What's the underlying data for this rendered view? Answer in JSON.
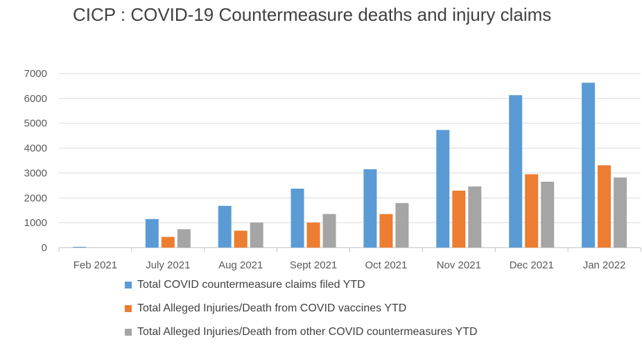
{
  "chart_data": {
    "type": "bar",
    "title": "CICP : COVID-19 Countermeasure deaths and injury claims",
    "categories": [
      "Feb 2021",
      "July 2021",
      "Aug 2021",
      "Sept 2021",
      "Oct 2021",
      "Nov 2021",
      "Dec 2021",
      "Jan 2022"
    ],
    "ylim": [
      0,
      7000
    ],
    "yticks": [
      "0",
      "1000",
      "2000",
      "3000",
      "4000",
      "5000",
      "6000",
      "7000"
    ],
    "grid": true,
    "legend_position": "bottom",
    "series": [
      {
        "name": "Total COVID countermeasure claims filed YTD",
        "color": "#5b9bd5",
        "values": [
          30,
          1150,
          1680,
          2370,
          3150,
          4730,
          6130,
          6630
        ]
      },
      {
        "name": "Total Alleged Injuries/Death from COVID vaccines YTD",
        "color": "#ed7d31",
        "values": [
          0,
          430,
          680,
          1010,
          1350,
          2290,
          2950,
          3310
        ]
      },
      {
        "name": "Total Alleged Injuries/Death from other COVID countermeasures YTD",
        "color": "#a5a5a5",
        "values": [
          0,
          740,
          1010,
          1350,
          1790,
          2460,
          2650,
          2820
        ]
      }
    ]
  }
}
